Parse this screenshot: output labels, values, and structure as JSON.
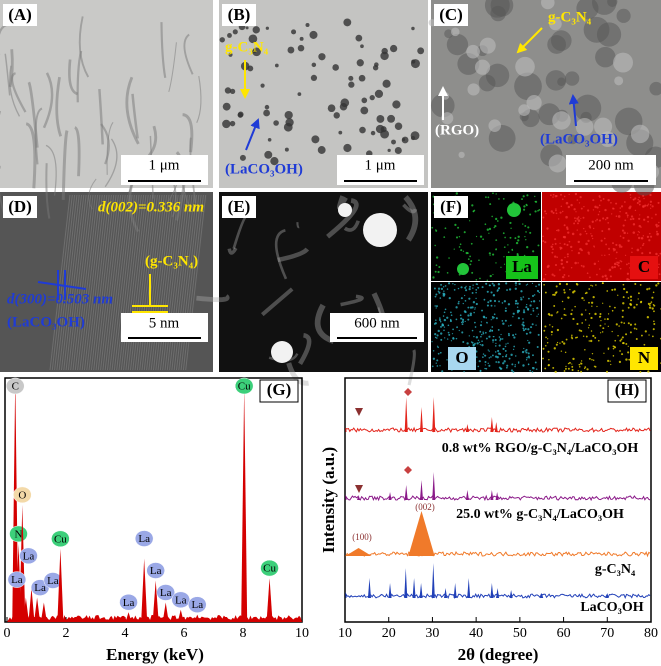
{
  "figure": {
    "panels": [
      {
        "label": "(A)",
        "scale_bar": "1 μm"
      },
      {
        "label": "(B)",
        "scale_bar": "1 μm",
        "annotations": [
          "g-C₃N₄",
          "(LaCO₃OH)"
        ]
      },
      {
        "label": "(C)",
        "scale_bar": "200 nm",
        "annotations": [
          "g-C₃N₄",
          "(RGO)",
          "(LaCO₃OH)"
        ]
      },
      {
        "label": "(D)",
        "scale_bar": "5 nm",
        "annotations": [
          "d(002)=0.336 nm",
          "(g-C₃N₄)",
          "d(300)=0.503 nm",
          "(LaCO₃OH)"
        ]
      },
      {
        "label": "(E)",
        "scale_bar": "600 nm"
      },
      {
        "label": "(F)",
        "maps": [
          "La",
          "C",
          "O",
          "N"
        ]
      }
    ]
  },
  "chart_data": [
    {
      "type": "spectrum",
      "label": "(G)",
      "x_label": "Energy (keV)",
      "xlim": [
        0,
        10
      ],
      "xticks": [
        0,
        2,
        4,
        6,
        8,
        10
      ],
      "ylim": [
        0,
        100
      ],
      "color": "#d40000",
      "peaks": [
        {
          "x": 0.28,
          "y": 100,
          "name": "C",
          "color": "#c8c8c8"
        },
        {
          "x": 0.39,
          "y": 32,
          "name": "N",
          "color": "#3ccf7a"
        },
        {
          "x": 0.52,
          "y": 48,
          "name": "O",
          "color": "#f3d9a8"
        },
        {
          "x": 0.64,
          "y": 10,
          "name": "La",
          "color": "#9aa8e6"
        },
        {
          "x": 0.83,
          "y": 14,
          "name": "La",
          "color": "#9aa8e6"
        },
        {
          "x": 1.02,
          "y": 10,
          "name": "La",
          "color": "#9aa8e6"
        },
        {
          "x": 1.25,
          "y": 8,
          "name": "La",
          "color": "#9aa8e6"
        },
        {
          "x": 1.81,
          "y": 30,
          "name": "Cu",
          "color": "#3ccf7a"
        },
        {
          "x": 4.12,
          "y": 4,
          "name": "La",
          "color": "#9aa8e6"
        },
        {
          "x": 4.65,
          "y": 26,
          "name": "La",
          "color": "#9aa8e6"
        },
        {
          "x": 5.04,
          "y": 17,
          "name": "La",
          "color": "#9aa8e6"
        },
        {
          "x": 5.38,
          "y": 8,
          "name": "La",
          "color": "#9aa8e6"
        },
        {
          "x": 5.89,
          "y": 5,
          "name": "La",
          "color": "#9aa8e6"
        },
        {
          "x": 6.45,
          "y": 3,
          "name": "La",
          "color": "#9aa8e6"
        },
        {
          "x": 8.04,
          "y": 96,
          "name": "Cu",
          "color": "#3ccf7a"
        },
        {
          "x": 8.9,
          "y": 18,
          "name": "Cu",
          "color": "#3ccf7a"
        }
      ]
    },
    {
      "type": "xrd",
      "label": "(H)",
      "x_label": "2θ (degree)",
      "y_label": "Intensity (a.u.)",
      "xlim": [
        10,
        80
      ],
      "xticks": [
        10,
        20,
        30,
        40,
        50,
        60,
        70,
        80
      ],
      "annotations": [
        "(100)",
        "(002)"
      ],
      "series": [
        {
          "name": "0.8 wt% RGO/g-C₃N₄/LaCO₃OH",
          "color": "#e3241b",
          "peaks": [
            [
              24,
              35
            ],
            [
              27.5,
              25
            ],
            [
              30.3,
              35
            ],
            [
              38,
              8
            ],
            [
              43.6,
              15
            ],
            [
              44.6,
              10
            ]
          ]
        },
        {
          "name": "25.0 wt% g-C₃N₄/LaCO₃OH",
          "color": "#8b1a89",
          "peaks": [
            [
              13.1,
              5
            ],
            [
              20.3,
              8
            ],
            [
              24,
              15
            ],
            [
              27.5,
              20
            ],
            [
              30.3,
              28
            ],
            [
              38,
              10
            ],
            [
              43.6,
              10
            ],
            [
              44.8,
              8
            ]
          ]
        },
        {
          "name": "g-C₃N₄",
          "color": "#f07a2a",
          "peaks": [
            [
              13.1,
              8
            ],
            [
              27.5,
              45
            ]
          ]
        },
        {
          "name": "LaCO₃OH",
          "color": "#2140b8",
          "peaks": [
            [
              15.6,
              20
            ],
            [
              20.3,
              15
            ],
            [
              23.9,
              30
            ],
            [
              25.8,
              20
            ],
            [
              27.4,
              15
            ],
            [
              30.2,
              35
            ],
            [
              33,
              10
            ],
            [
              35.2,
              15
            ],
            [
              38.3,
              20
            ],
            [
              43.6,
              15
            ],
            [
              44.9,
              10
            ],
            [
              48,
              8
            ],
            [
              55,
              5
            ],
            [
              70,
              5
            ]
          ]
        }
      ]
    }
  ]
}
